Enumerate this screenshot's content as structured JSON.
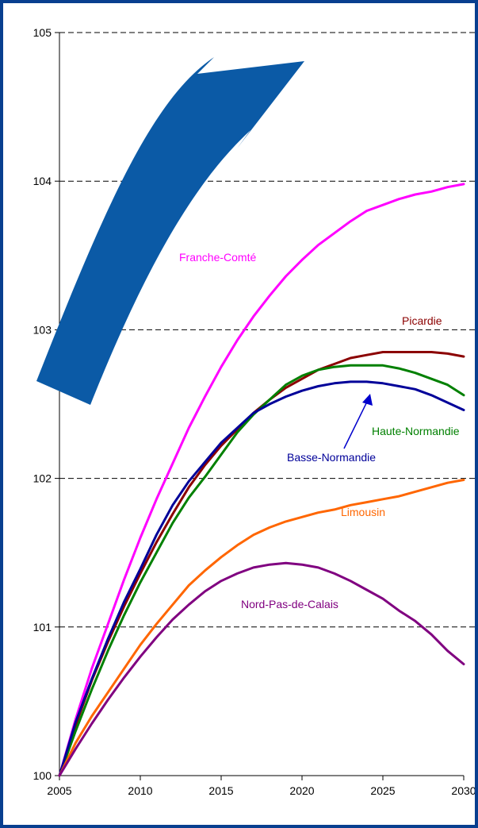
{
  "chart_data": {
    "type": "line",
    "title": "",
    "xlabel": "",
    "ylabel": "",
    "xlim": [
      2005,
      2030
    ],
    "ylim": [
      100,
      105
    ],
    "x_ticks": [
      "2005",
      "2010",
      "2015",
      "2020",
      "2025",
      "2030"
    ],
    "y_ticks": [
      "100",
      "101",
      "102",
      "103",
      "104",
      "105"
    ],
    "grid": "horizontal dashed",
    "x": [
      2005,
      2006,
      2007,
      2008,
      2009,
      2010,
      2011,
      2012,
      2013,
      2014,
      2015,
      2016,
      2017,
      2018,
      2019,
      2020,
      2021,
      2022,
      2023,
      2024,
      2025,
      2026,
      2027,
      2028,
      2029,
      2030
    ],
    "series": [
      {
        "name": "Franche-Comté",
        "color": "#ff00ff",
        "values": [
          100.0,
          100.38,
          100.72,
          101.02,
          101.32,
          101.6,
          101.86,
          102.1,
          102.34,
          102.55,
          102.75,
          102.93,
          103.09,
          103.23,
          103.36,
          103.47,
          103.57,
          103.65,
          103.73,
          103.8,
          103.84,
          103.88,
          103.91,
          103.93,
          103.96,
          103.98
        ]
      },
      {
        "name": "Picardie",
        "color": "#8b0000",
        "values": [
          100.0,
          100.34,
          100.64,
          100.9,
          101.14,
          101.36,
          101.57,
          101.76,
          101.94,
          102.09,
          102.22,
          102.33,
          102.44,
          102.53,
          102.61,
          102.67,
          102.73,
          102.77,
          102.81,
          102.83,
          102.85,
          102.85,
          102.85,
          102.85,
          102.84,
          102.82
        ]
      },
      {
        "name": "Haute-Normandie",
        "color": "#008000",
        "values": [
          100.0,
          100.3,
          100.58,
          100.84,
          101.08,
          101.3,
          101.5,
          101.7,
          101.87,
          102.01,
          102.16,
          102.31,
          102.43,
          102.53,
          102.63,
          102.69,
          102.73,
          102.75,
          102.76,
          102.76,
          102.76,
          102.74,
          102.71,
          102.67,
          102.63,
          102.56
        ]
      },
      {
        "name": "Basse-Normandie",
        "color": "#000099",
        "values": [
          100.0,
          100.36,
          100.65,
          100.92,
          101.17,
          101.39,
          101.62,
          101.82,
          101.98,
          102.11,
          102.24,
          102.34,
          102.44,
          102.5,
          102.55,
          102.59,
          102.62,
          102.64,
          102.65,
          102.65,
          102.64,
          102.62,
          102.6,
          102.56,
          102.51,
          102.46
        ]
      },
      {
        "name": "Limousin",
        "color": "#ff6600",
        "values": [
          100.0,
          100.22,
          100.4,
          100.56,
          100.72,
          100.88,
          101.02,
          101.15,
          101.28,
          101.38,
          101.47,
          101.55,
          101.62,
          101.67,
          101.71,
          101.74,
          101.77,
          101.79,
          101.82,
          101.84,
          101.86,
          101.88,
          101.91,
          101.94,
          101.97,
          101.99
        ]
      },
      {
        "name": "Nord-Pas-de-Calais",
        "color": "#800080",
        "values": [
          100.0,
          100.18,
          100.35,
          100.51,
          100.66,
          100.8,
          100.93,
          101.05,
          101.15,
          101.24,
          101.31,
          101.36,
          101.4,
          101.42,
          101.43,
          101.42,
          101.4,
          101.36,
          101.31,
          101.25,
          101.19,
          101.11,
          101.04,
          100.95,
          100.84,
          100.75
        ]
      }
    ],
    "decorations": {
      "arrow_color": "#0b5aa6",
      "pointer_color": "#0000cc"
    }
  }
}
